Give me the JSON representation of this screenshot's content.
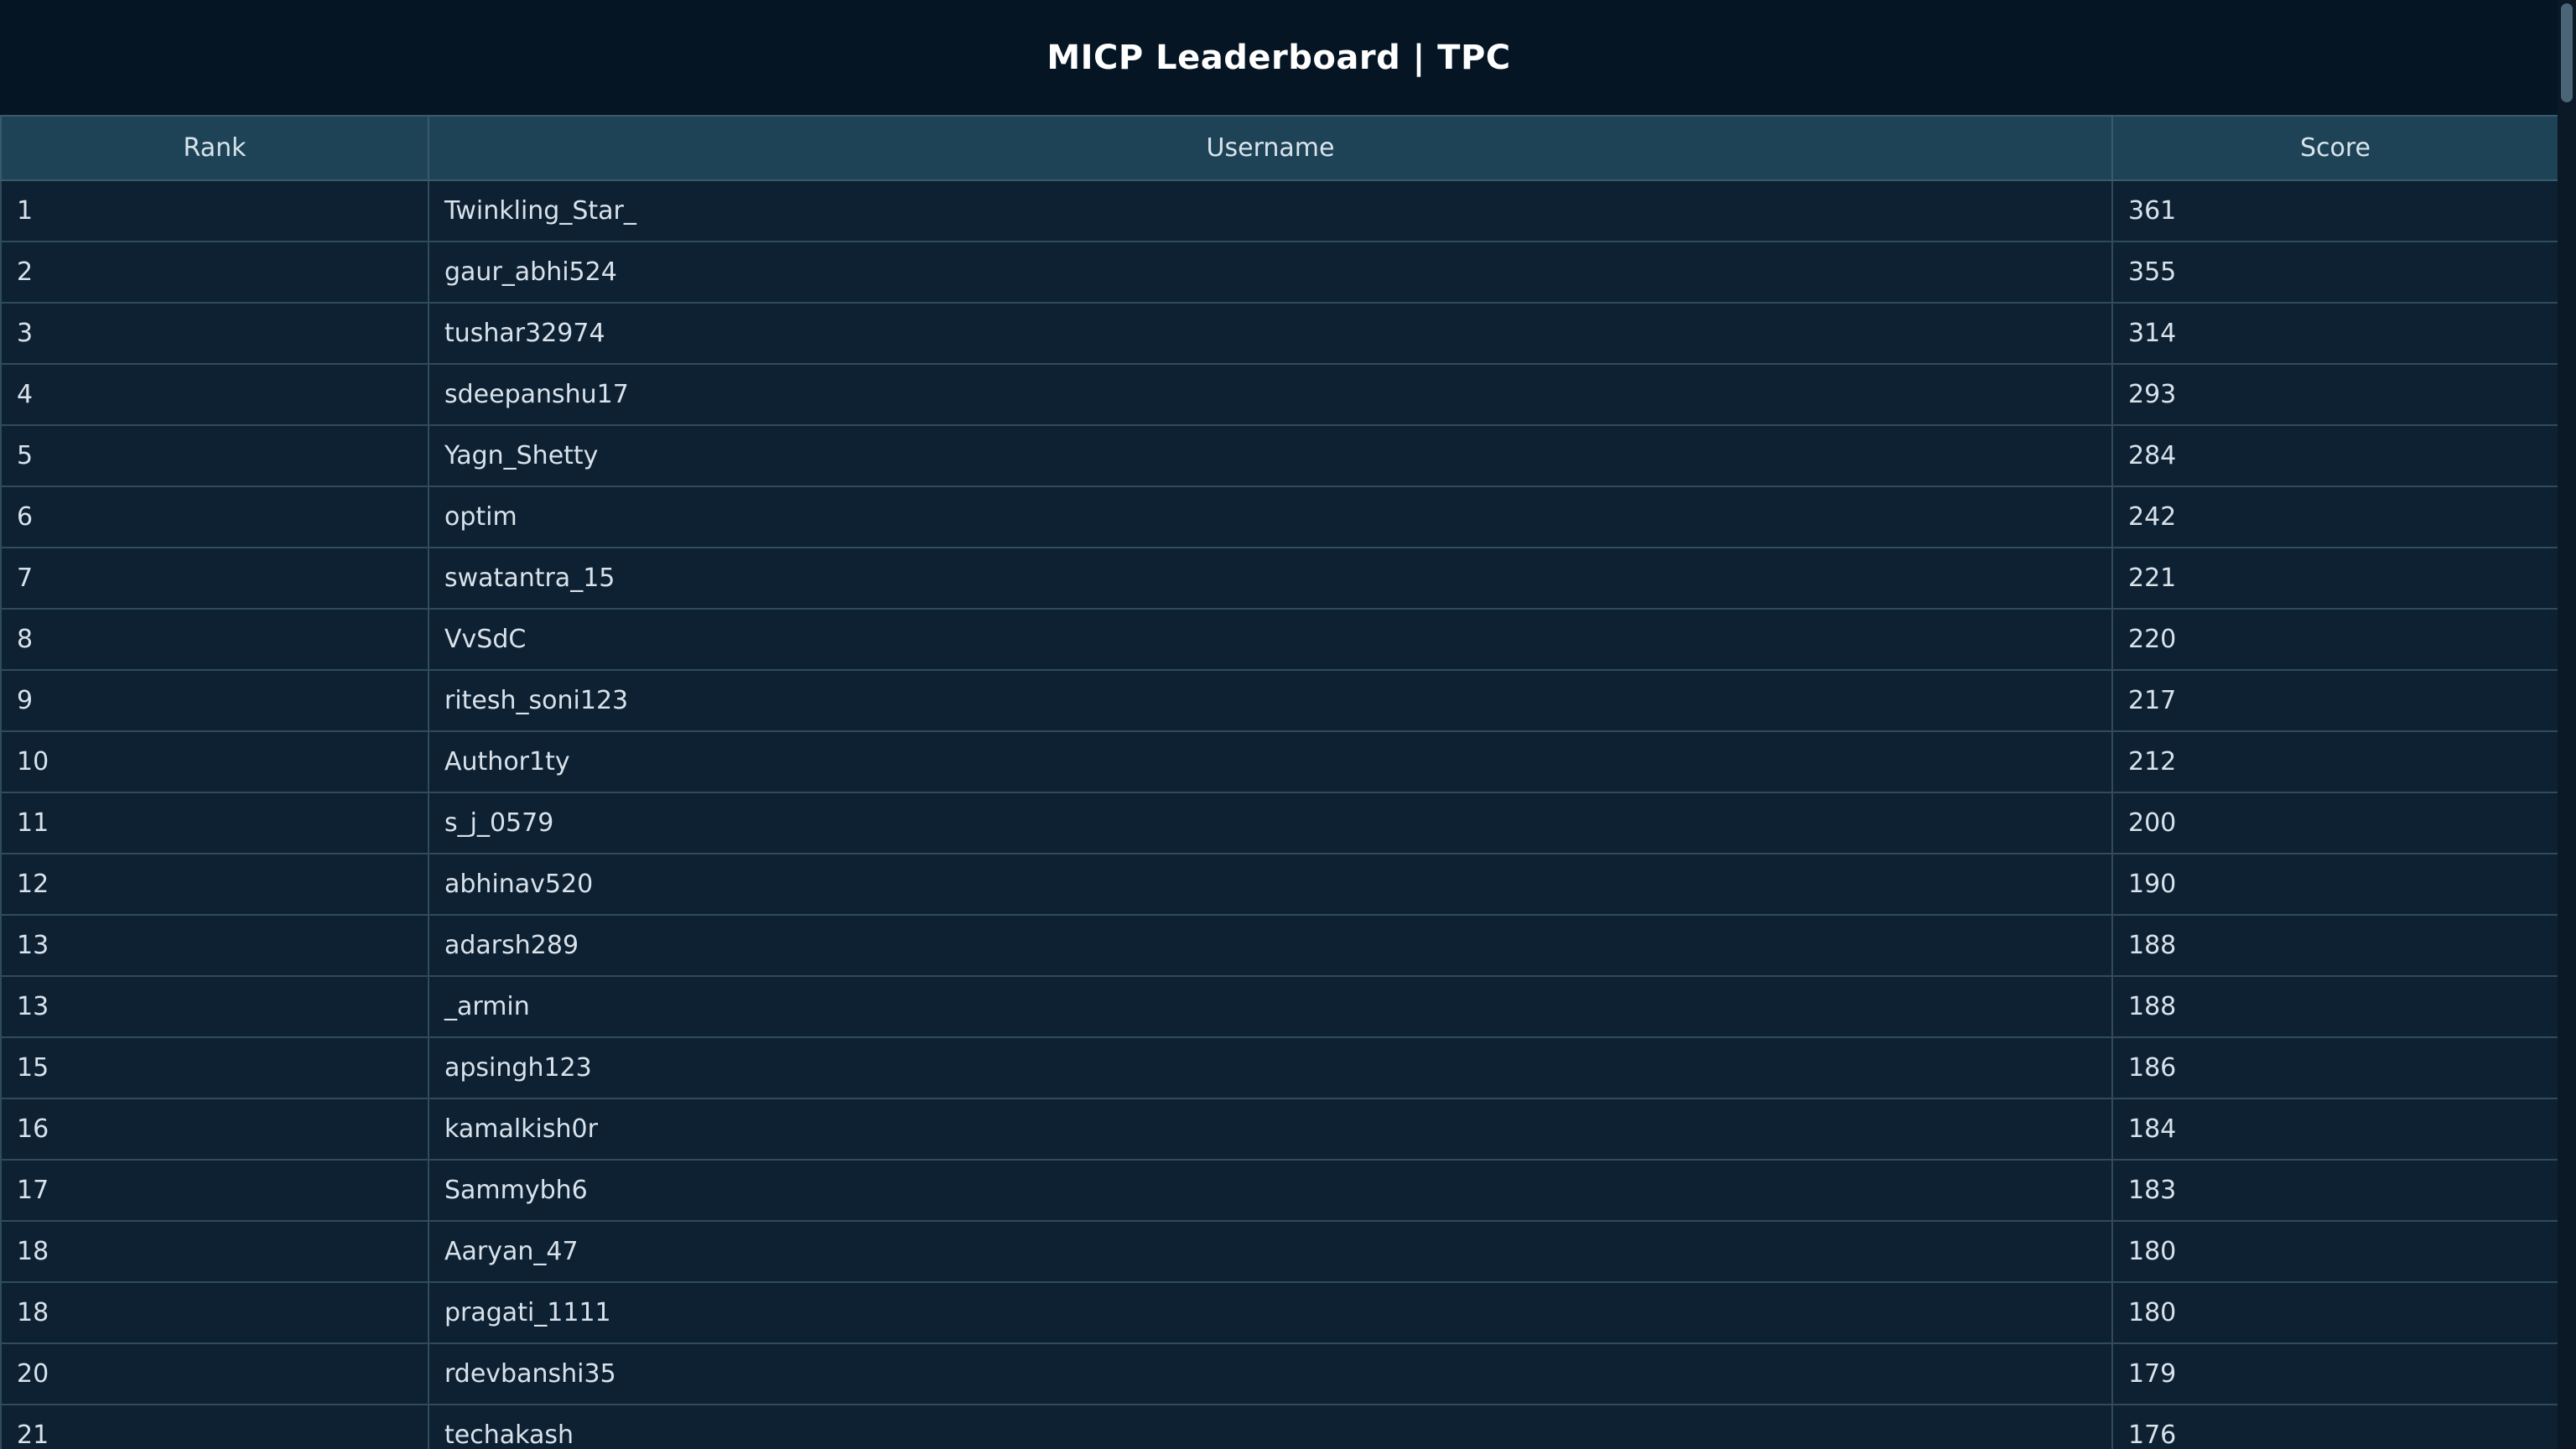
{
  "header": {
    "title": "MICP Leaderboard | TPC"
  },
  "table": {
    "columns": [
      "Rank",
      "Username",
      "Score"
    ],
    "rows": [
      {
        "rank": "1",
        "username": "Twinkling_Star_",
        "score": "361"
      },
      {
        "rank": "2",
        "username": "gaur_abhi524",
        "score": "355"
      },
      {
        "rank": "3",
        "username": "tushar32974",
        "score": "314"
      },
      {
        "rank": "4",
        "username": "sdeepanshu17",
        "score": "293"
      },
      {
        "rank": "5",
        "username": "Yagn_Shetty",
        "score": "284"
      },
      {
        "rank": "6",
        "username": "optim",
        "score": "242"
      },
      {
        "rank": "7",
        "username": "swatantra_15",
        "score": "221"
      },
      {
        "rank": "8",
        "username": "VvSdC",
        "score": "220"
      },
      {
        "rank": "9",
        "username": "ritesh_soni123",
        "score": "217"
      },
      {
        "rank": "10",
        "username": "Author1ty",
        "score": "212"
      },
      {
        "rank": "11",
        "username": "s_j_0579",
        "score": "200"
      },
      {
        "rank": "12",
        "username": "abhinav520",
        "score": "190"
      },
      {
        "rank": "13",
        "username": "adarsh289",
        "score": "188"
      },
      {
        "rank": "13",
        "username": "_armin",
        "score": "188"
      },
      {
        "rank": "15",
        "username": "apsingh123",
        "score": "186"
      },
      {
        "rank": "16",
        "username": "kamalkish0r",
        "score": "184"
      },
      {
        "rank": "17",
        "username": "Sammybh6",
        "score": "183"
      },
      {
        "rank": "18",
        "username": "Aaryan_47",
        "score": "180"
      },
      {
        "rank": "18",
        "username": "pragati_1111",
        "score": "180"
      },
      {
        "rank": "20",
        "username": "rdevbanshi35",
        "score": "179"
      },
      {
        "rank": "21",
        "username": "techakash",
        "score": "176"
      }
    ]
  }
}
